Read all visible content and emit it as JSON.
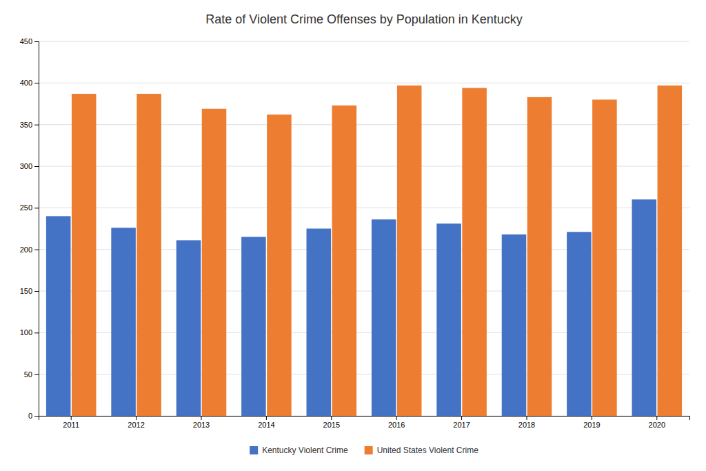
{
  "chart_data": {
    "type": "bar",
    "title": "Rate of Violent Crime Offenses by Population in Kentucky",
    "categories": [
      "2011",
      "2012",
      "2013",
      "2014",
      "2015",
      "2016",
      "2017",
      "2018",
      "2019",
      "2020"
    ],
    "series": [
      {
        "name": "Kentucky Violent Crime",
        "color": "#4472C4",
        "values": [
          240,
          226,
          211,
          215,
          225,
          236,
          231,
          218,
          221,
          260
        ]
      },
      {
        "name": "United States Violent Crime",
        "color": "#ED7D31",
        "values": [
          387,
          387,
          369,
          362,
          373,
          397,
          394,
          383,
          380,
          397
        ]
      }
    ],
    "ylim": [
      0,
      450
    ],
    "yticks": [
      0,
      50,
      100,
      150,
      200,
      250,
      300,
      350,
      400,
      450
    ],
    "grid": true,
    "legend": "bottom"
  }
}
